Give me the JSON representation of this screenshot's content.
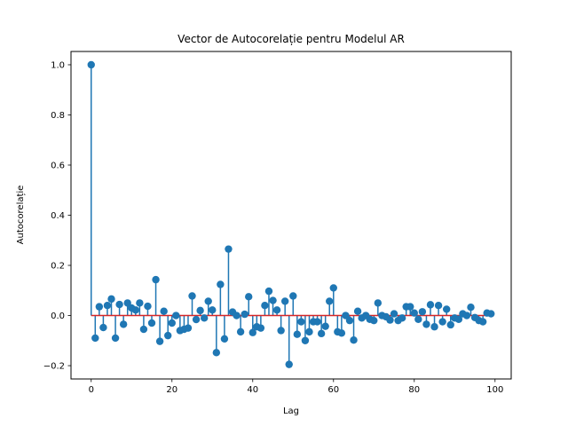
{
  "chart_data": {
    "type": "stem",
    "title": "Vector de Autocorelație pentru Modelul AR",
    "xlabel": "Lag",
    "ylabel": "Autocorelație",
    "xlim": [
      -5,
      104
    ],
    "ylim": [
      -0.253,
      1.053
    ],
    "xticks": [
      0,
      20,
      40,
      60,
      80,
      100
    ],
    "yticks": [
      -0.2,
      0.0,
      0.2,
      0.4,
      0.6,
      0.8,
      1.0
    ],
    "ytick_labels": [
      "−0.2",
      "0.0",
      "0.2",
      "0.4",
      "0.6",
      "0.8",
      "1.0"
    ],
    "grid": false,
    "colors": {
      "stem": "#1f77b4",
      "baseline": "#d62728"
    },
    "x": [
      0,
      1,
      2,
      3,
      4,
      5,
      6,
      7,
      8,
      9,
      10,
      11,
      12,
      13,
      14,
      15,
      16,
      17,
      18,
      19,
      20,
      21,
      22,
      23,
      24,
      25,
      26,
      27,
      28,
      29,
      30,
      31,
      32,
      33,
      34,
      35,
      36,
      37,
      38,
      39,
      40,
      41,
      42,
      43,
      44,
      45,
      46,
      47,
      48,
      49,
      50,
      51,
      52,
      53,
      54,
      55,
      56,
      57,
      58,
      59,
      60,
      61,
      62,
      63,
      64,
      65,
      66,
      67,
      68,
      69,
      70,
      71,
      72,
      73,
      74,
      75,
      76,
      77,
      78,
      79,
      80,
      81,
      82,
      83,
      84,
      85,
      86,
      87,
      88,
      89,
      90,
      91,
      92,
      93,
      94,
      95,
      96,
      97,
      98,
      99
    ],
    "values": [
      1.0,
      -0.09,
      0.035,
      -0.048,
      0.04,
      0.066,
      -0.09,
      0.044,
      -0.035,
      0.05,
      0.03,
      0.022,
      0.05,
      -0.055,
      0.037,
      -0.03,
      0.143,
      -0.103,
      0.017,
      -0.08,
      -0.03,
      0.0,
      -0.06,
      -0.055,
      -0.05,
      0.078,
      -0.016,
      0.02,
      -0.01,
      0.057,
      0.022,
      -0.148,
      0.124,
      -0.093,
      0.265,
      0.014,
      0.0,
      -0.065,
      0.005,
      0.075,
      -0.068,
      -0.045,
      -0.05,
      0.04,
      0.097,
      0.06,
      0.022,
      -0.06,
      0.057,
      -0.195,
      0.078,
      -0.075,
      -0.025,
      -0.1,
      -0.065,
      -0.025,
      -0.025,
      -0.072,
      -0.043,
      0.057,
      0.11,
      -0.065,
      -0.07,
      0.0,
      -0.02,
      -0.098,
      0.017,
      -0.01,
      0.0,
      -0.015,
      -0.02,
      0.05,
      0.0,
      -0.005,
      -0.018,
      0.007,
      -0.02,
      -0.01,
      0.035,
      0.035,
      0.01,
      -0.015,
      0.015,
      -0.035,
      0.043,
      -0.045,
      0.04,
      -0.025,
      0.025,
      -0.037,
      -0.01,
      -0.015,
      0.007,
      0.0,
      0.033,
      -0.008,
      -0.02,
      -0.025,
      0.01,
      0.007
    ]
  }
}
